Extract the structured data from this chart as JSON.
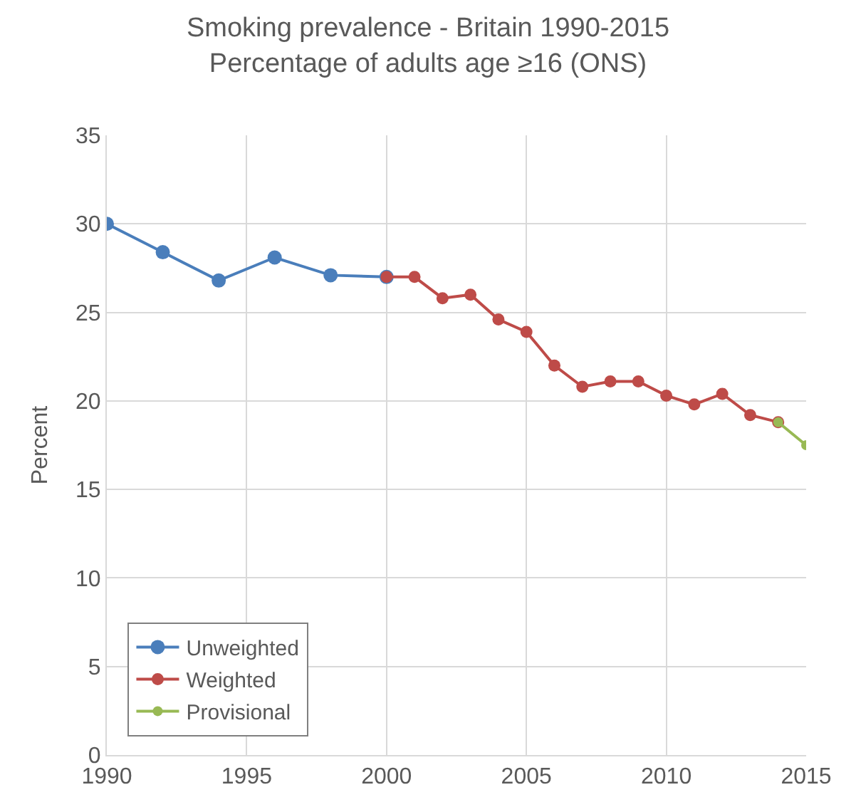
{
  "chart_data": {
    "type": "line",
    "title": "Smoking prevalence - Britain 1990-2015",
    "subtitle": "Percentage of adults age ≥16 (ONS)",
    "ylabel": "Percent",
    "series": [
      {
        "name": "Unweighted",
        "color": "#4a7ebb",
        "x": [
          1990,
          1992,
          1994,
          1996,
          1998,
          2000
        ],
        "values": [
          30,
          28.4,
          26.8,
          28.1,
          27.1,
          27
        ]
      },
      {
        "name": "Weighted",
        "color": "#be4b48",
        "x": [
          2000,
          2001,
          2002,
          2003,
          2004,
          2005,
          2006,
          2007,
          2008,
          2009,
          2010,
          2011,
          2012,
          2013,
          2014
        ],
        "values": [
          27,
          27,
          25.8,
          26,
          24.6,
          23.9,
          22,
          20.8,
          21.1,
          21.1,
          20.3,
          19.8,
          20.4,
          19.2,
          18.8
        ]
      },
      {
        "name": "Provisional",
        "color": "#98b954",
        "x": [
          2014,
          2015
        ],
        "values": [
          18.8,
          17.5
        ]
      }
    ],
    "xlim": [
      1990,
      2015
    ],
    "xticks": [
      1990,
      1995,
      2000,
      2005,
      2010,
      2015
    ],
    "ylim": [
      0,
      35
    ],
    "yticks": [
      0,
      5,
      10,
      15,
      20,
      25,
      30,
      35
    ],
    "grid": true,
    "legend": "bottom left",
    "marker": "circle",
    "line_style": "solid"
  }
}
